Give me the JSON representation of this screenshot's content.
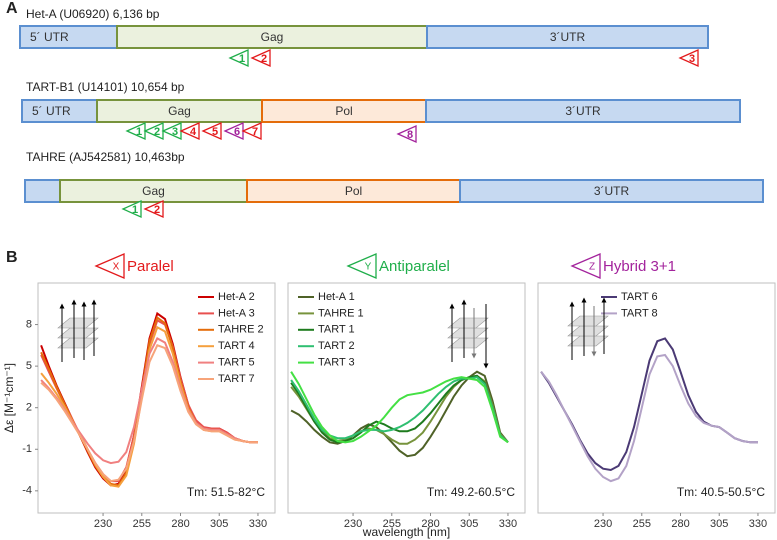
{
  "panel_a": {
    "label": "A",
    "elements": [
      {
        "title": "Het-A (U06920) 6,136 bp",
        "regions": [
          "5´ UTR",
          "Gag",
          "3´UTR"
        ],
        "sites": [
          "1",
          "2",
          "3"
        ]
      },
      {
        "title": "TART-B1 (U14101) 10,654 bp",
        "regions": [
          "5´ UTR",
          "Gag",
          "Pol",
          "3´UTR"
        ],
        "sites": [
          "1",
          "2",
          "3",
          "4",
          "5",
          "6",
          "7",
          "8"
        ]
      },
      {
        "title": "TAHRE (AJ542581) 10,463bp",
        "regions": [
          "Gag",
          "Pol",
          "3´UTR"
        ],
        "sites": [
          "1",
          "2"
        ]
      }
    ]
  },
  "panel_b": {
    "label": "B",
    "headers": [
      {
        "symbol": "X",
        "text": "Paralel"
      },
      {
        "symbol": "Y",
        "text": "Antiparalel"
      },
      {
        "symbol": "Z",
        "text": "Hybrid 3+1"
      }
    ]
  },
  "chart_data": [
    {
      "type": "line",
      "ylabel": "Δε [M⁻¹cm⁻¹]",
      "annotation": "Tm: 51.5-82°C",
      "xlim": [
        188,
        341
      ],
      "ylim": [
        -5.6,
        11
      ],
      "xticks": [
        230,
        255,
        280,
        305,
        330
      ],
      "yticks": [
        8,
        5,
        2,
        -1,
        -4
      ],
      "x": [
        190,
        195,
        200,
        205,
        210,
        215,
        220,
        225,
        230,
        235,
        240,
        245,
        250,
        255,
        260,
        265,
        270,
        275,
        280,
        285,
        290,
        295,
        300,
        305,
        310,
        315,
        320,
        325,
        330
      ],
      "series": [
        {
          "name": "Het-A 2",
          "color": "#cc0000",
          "values": [
            6.5,
            5,
            3.6,
            2.4,
            1.2,
            0,
            -1.2,
            -2.3,
            -3.1,
            -3.6,
            -3.5,
            -2.4,
            0,
            3.5,
            7,
            8.8,
            8.4,
            6.6,
            4.2,
            2.2,
            1,
            0.5,
            0.4,
            0.5,
            0.2,
            -0.2,
            -0.4,
            -0.5,
            -0.5
          ]
        },
        {
          "name": "Het-A 3",
          "color": "#e8504f",
          "values": [
            5.8,
            4.6,
            3.4,
            2.3,
            1.2,
            0.1,
            -1,
            -2,
            -2.8,
            -3.3,
            -3.3,
            -2.3,
            0,
            3.3,
            6.6,
            8.3,
            8,
            6.4,
            4.1,
            2.2,
            1.1,
            0.6,
            0.5,
            0.5,
            0.2,
            -0.2,
            -0.4,
            -0.5,
            -0.5
          ]
        },
        {
          "name": "TAHRE 2",
          "color": "#e46c0a",
          "values": [
            6,
            4.8,
            3.5,
            2.3,
            1.1,
            0,
            -1.1,
            -2.2,
            -3,
            -3.5,
            -3.6,
            -2.7,
            -0.3,
            3.2,
            6.8,
            8.5,
            8.1,
            6.3,
            3.9,
            2,
            0.9,
            0.5,
            0.4,
            0.4,
            0.1,
            -0.2,
            -0.4,
            -0.5,
            -0.5
          ]
        },
        {
          "name": "TART 4",
          "color": "#f5a03d",
          "values": [
            4.5,
            3.8,
            3,
            2.1,
            1.1,
            0.1,
            -1,
            -2.1,
            -3,
            -3.6,
            -3.7,
            -2.9,
            -0.6,
            2.8,
            6.2,
            7.8,
            7.5,
            5.9,
            3.7,
            1.9,
            0.9,
            0.4,
            0.3,
            0.3,
            0,
            -0.3,
            -0.4,
            -0.5,
            -0.5
          ]
        },
        {
          "name": "TART 5",
          "color": "#f08080",
          "values": [
            4,
            3.4,
            2.7,
            1.9,
            1,
            0.2,
            -0.6,
            -1.3,
            -1.8,
            -2,
            -1.9,
            -1.2,
            0.6,
            3.3,
            5.9,
            7,
            6.7,
            5.3,
            3.4,
            1.8,
            0.9,
            0.5,
            0.4,
            0.4,
            0.1,
            -0.2,
            -0.4,
            -0.5,
            -0.5
          ]
        },
        {
          "name": "TART 7",
          "color": "#f7a47a",
          "values": [
            3.8,
            3.3,
            2.6,
            1.8,
            0.9,
            0,
            -1,
            -2,
            -2.8,
            -3.3,
            -3.2,
            -2.4,
            -0.4,
            2.6,
            5.3,
            6.5,
            6.3,
            5,
            3.2,
            1.7,
            0.8,
            0.4,
            0.3,
            0.3,
            0,
            -0.3,
            -0.4,
            -0.5,
            -0.5
          ]
        }
      ]
    },
    {
      "type": "line",
      "xlabel": "wavelength [nm]",
      "annotation": "Tm: 49.2-60.5°C",
      "xlim": [
        188,
        341
      ],
      "ylim": [
        -5.6,
        11
      ],
      "xticks": [
        230,
        255,
        280,
        305,
        330
      ],
      "x": [
        190,
        195,
        200,
        205,
        210,
        215,
        220,
        225,
        230,
        235,
        240,
        245,
        250,
        255,
        260,
        265,
        270,
        275,
        280,
        285,
        290,
        295,
        300,
        305,
        310,
        315,
        320,
        325,
        330
      ],
      "series": [
        {
          "name": "Het-A 1",
          "color": "#4f6228",
          "values": [
            1.8,
            1.5,
            1,
            0.4,
            -0.1,
            -0.5,
            -0.6,
            -0.4,
            0,
            0.5,
            0.8,
            0.6,
            0.1,
            -0.5,
            -1.1,
            -1.5,
            -1.4,
            -0.9,
            -0.1,
            0.8,
            1.8,
            2.8,
            3.6,
            4.2,
            4.6,
            4.3,
            2.5,
            0.2,
            -0.5
          ]
        },
        {
          "name": "TAHRE 1",
          "color": "#77933c",
          "values": [
            3.5,
            2.8,
            1.9,
            1,
            0.3,
            -0.2,
            -0.4,
            -0.3,
            0,
            0.3,
            0.5,
            0.4,
            0.1,
            -0.3,
            -0.6,
            -0.6,
            -0.3,
            0.2,
            1,
            1.9,
            2.8,
            3.5,
            4,
            4.2,
            4.3,
            3.9,
            2.2,
            0.1,
            -0.5
          ]
        },
        {
          "name": "TART 1",
          "color": "#1e7b1e",
          "values": [
            3.8,
            3,
            2,
            1,
            0.2,
            -0.3,
            -0.5,
            -0.4,
            -0.2,
            0.2,
            0.7,
            1,
            0.8,
            0.5,
            0.3,
            0.3,
            0.5,
            1,
            1.6,
            2.3,
            3,
            3.6,
            4,
            4.2,
            4.3,
            3.8,
            2,
            0,
            -0.5
          ]
        },
        {
          "name": "TART 2",
          "color": "#2fbf71",
          "values": [
            4,
            3.2,
            2.2,
            1.2,
            0.4,
            0,
            -0.2,
            -0.2,
            0,
            0.3,
            0.4,
            0.4,
            0.3,
            0.4,
            0.6,
            0.9,
            1.3,
            1.8,
            2.4,
            3,
            3.5,
            3.9,
            4.1,
            4.1,
            4.2,
            3.7,
            2,
            0,
            -0.5
          ]
        },
        {
          "name": "TART 3",
          "color": "#44e044",
          "values": [
            4.6,
            3.7,
            2.6,
            1.5,
            0.6,
            0,
            -0.4,
            -0.5,
            -0.4,
            -0.1,
            0.3,
            0.7,
            1.3,
            2,
            2.6,
            2.9,
            3,
            3.1,
            3.3,
            3.6,
            3.9,
            4.1,
            4.2,
            4.1,
            4,
            3.5,
            1.8,
            -0.1,
            -0.5
          ]
        }
      ]
    },
    {
      "type": "line",
      "annotation": "Tm: 40.5-50.5°C",
      "xlim": [
        188,
        341
      ],
      "ylim": [
        -5.6,
        11
      ],
      "xticks": [
        230,
        255,
        280,
        305,
        330
      ],
      "x": [
        190,
        195,
        200,
        205,
        210,
        215,
        220,
        225,
        230,
        235,
        240,
        245,
        250,
        255,
        260,
        265,
        270,
        275,
        280,
        285,
        290,
        295,
        300,
        305,
        310,
        315,
        320,
        325,
        330
      ],
      "series": [
        {
          "name": "TART 6",
          "color": "#4b3a75",
          "values": [
            4.6,
            3.8,
            2.8,
            1.8,
            0.8,
            -0.3,
            -1.3,
            -2,
            -2.4,
            -2.5,
            -2.2,
            -1.2,
            0.6,
            3,
            5.4,
            6.8,
            7,
            6.2,
            4.6,
            2.9,
            1.7,
            1,
            0.7,
            0.6,
            0.2,
            -0.2,
            -0.4,
            -0.5,
            -0.5
          ]
        },
        {
          "name": "TART 8",
          "color": "#b3a2c7",
          "values": [
            4.6,
            3.9,
            2.9,
            1.8,
            0.7,
            -0.4,
            -1.5,
            -2.4,
            -3,
            -3.3,
            -3.1,
            -2.2,
            -0.4,
            2,
            4.4,
            5.7,
            5.8,
            5,
            3.6,
            2.3,
            1.4,
            0.9,
            0.7,
            0.6,
            0.2,
            -0.2,
            -0.4,
            -0.5,
            -0.5
          ]
        }
      ]
    }
  ]
}
